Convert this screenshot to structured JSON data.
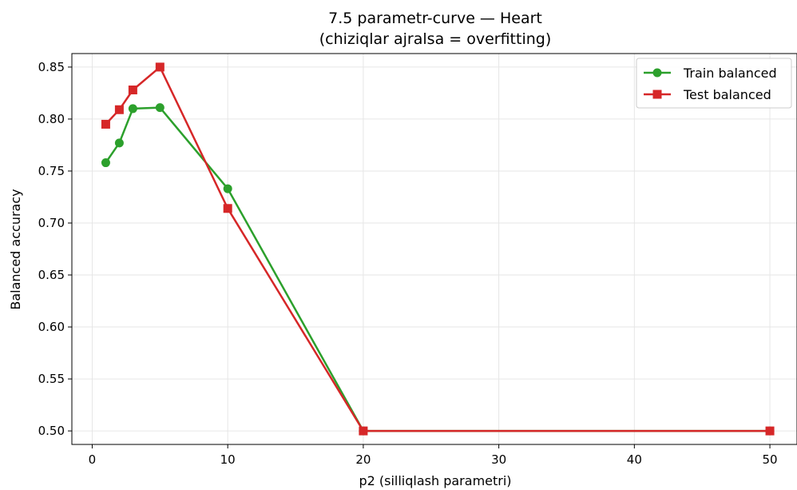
{
  "chart_data": {
    "type": "line",
    "title": "7.5 parametr-curve — Heart",
    "subtitle": "(chiziqlar ajralsa = overfitting)",
    "xlabel": "p2 (silliqlash parametri)",
    "ylabel": "Balanced accuracy",
    "xlim": [
      -1.5,
      52.0
    ],
    "ylim": [
      0.487,
      0.863
    ],
    "xticks": [
      0,
      10,
      20,
      30,
      40,
      50
    ],
    "yticks": [
      0.5,
      0.55,
      0.6,
      0.65,
      0.7,
      0.75,
      0.8,
      0.85
    ],
    "xtick_labels": [
      "0",
      "10",
      "20",
      "30",
      "40",
      "50"
    ],
    "ytick_labels": [
      "0.50",
      "0.55",
      "0.60",
      "0.65",
      "0.70",
      "0.75",
      "0.80",
      "0.85"
    ],
    "grid": true,
    "legend_position": "top-right",
    "x": [
      1,
      2,
      3,
      5,
      10,
      20,
      50
    ],
    "series": [
      {
        "name": "Train balanced",
        "color": "#2ca02c",
        "marker": "circle",
        "values": [
          0.758,
          0.777,
          0.81,
          0.811,
          0.733,
          0.5,
          0.5
        ]
      },
      {
        "name": "Test balanced",
        "color": "#d62728",
        "marker": "square",
        "values": [
          0.795,
          0.809,
          0.828,
          0.85,
          0.714,
          0.5,
          0.5
        ]
      }
    ]
  }
}
